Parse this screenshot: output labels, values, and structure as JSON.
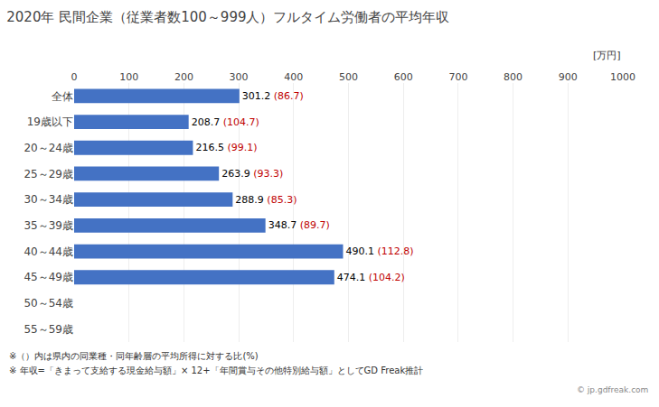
{
  "chart_data": {
    "type": "bar",
    "orientation": "horizontal",
    "title": "2020年 民間企業（従業者数100～999人）フルタイム労働者の平均年収",
    "unit_label": "[万円]",
    "categories": [
      "全体",
      "19歳以下",
      "20～24歳",
      "25～29歳",
      "30～34歳",
      "35～39歳",
      "40～44歳",
      "45～49歳",
      "50～54歳",
      "55～59歳"
    ],
    "values": [
      301.2,
      208.7,
      216.5,
      263.9,
      288.9,
      348.7,
      490.1,
      474.1,
      0,
      0
    ],
    "value_labels": [
      "301.2",
      "208.7",
      "216.5",
      "263.9",
      "288.9",
      "348.7",
      "490.1",
      "474.1",
      null,
      null
    ],
    "ratio_labels": [
      "(86.7)",
      "(104.7)",
      "(99.1)",
      "(93.3)",
      "(85.3)",
      "(89.7)",
      "(112.8)",
      "(104.2)",
      null,
      null
    ],
    "data_labels": true,
    "color": "#4472c4",
    "label_color": "#000000",
    "ratio_color": "#c00000",
    "xlim": [
      0,
      1000
    ],
    "xticks": [
      0,
      100,
      200,
      300,
      400,
      500,
      600,
      700,
      800,
      900,
      1000
    ],
    "grid": true,
    "footnotes": [
      "※（）内は県内の同業種・同年齢層の平均所得に対する比(%)",
      "※ 年収=「きまって支給する現金給与額」× 12+「年間賞与その他特別給与額」としてGD Freak推計"
    ],
    "watermark": "© jp.gdfreak.com"
  }
}
